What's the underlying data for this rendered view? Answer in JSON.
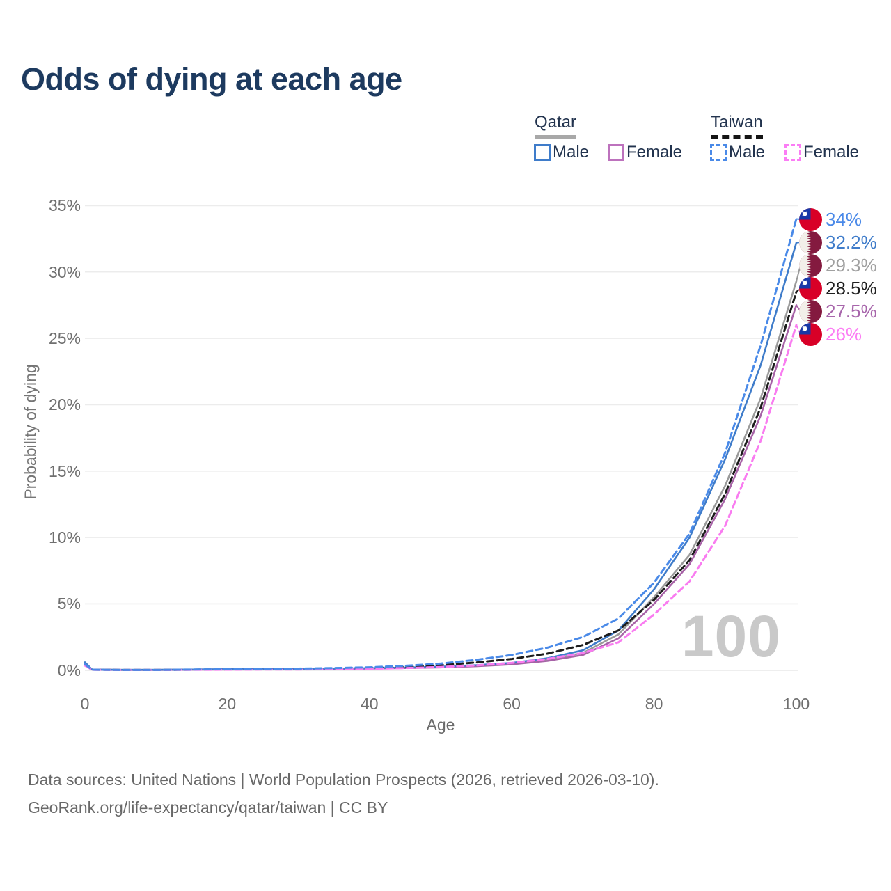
{
  "title": "Odds of dying at each age",
  "legend": {
    "groups": [
      {
        "name": "Qatar",
        "line_style": "solid",
        "underline_color": "#a8a8a8",
        "items": [
          {
            "label": "Male",
            "color": "#3f7cca"
          },
          {
            "label": "Female",
            "color": "#bd72bd"
          }
        ]
      },
      {
        "name": "Taiwan",
        "line_style": "dashed",
        "underline_color": "#141414",
        "items": [
          {
            "label": "Male",
            "color": "#4a8ae8"
          },
          {
            "label": "Female",
            "color": "#fb7df5"
          }
        ]
      }
    ]
  },
  "chart_data": {
    "type": "line",
    "xlabel": "Age",
    "ylabel": "Probability of dying",
    "watermark": "100",
    "xlim": [
      0,
      100
    ],
    "ylim": [
      0,
      35
    ],
    "grid": "horizontal",
    "legend_position": "top-right",
    "x_ticks": [
      {
        "label": "0",
        "value": 0
      },
      {
        "label": "20",
        "value": 20
      },
      {
        "label": "40",
        "value": 40
      },
      {
        "label": "60",
        "value": 60
      },
      {
        "label": "80",
        "value": 80
      },
      {
        "label": "100",
        "value": 100
      }
    ],
    "y_ticks": [
      {
        "label": "0%",
        "value": 0
      },
      {
        "label": "5%",
        "value": 5
      },
      {
        "label": "10%",
        "value": 10
      },
      {
        "label": "15%",
        "value": 15
      },
      {
        "label": "20%",
        "value": 20
      },
      {
        "label": "25%",
        "value": 25
      },
      {
        "label": "30%",
        "value": 30
      },
      {
        "label": "35%",
        "value": 35
      }
    ],
    "x": [
      0,
      1,
      5,
      10,
      15,
      20,
      25,
      30,
      35,
      40,
      45,
      50,
      55,
      60,
      65,
      70,
      75,
      80,
      85,
      90,
      95,
      100
    ],
    "series": [
      {
        "name": "Qatar Total",
        "country": "Qatar",
        "flag": "qatar",
        "dash": "solid",
        "color": "#9a9a9a",
        "end_label": "29.3%",
        "end_label_color": "#a0a0a0",
        "values": [
          0.55,
          0.05,
          0.03,
          0.03,
          0.05,
          0.07,
          0.08,
          0.09,
          0.11,
          0.14,
          0.18,
          0.24,
          0.34,
          0.5,
          0.8,
          1.3,
          2.7,
          5.5,
          8.7,
          13.9,
          20.5,
          29.3
        ]
      },
      {
        "name": "Qatar Female",
        "country": "Qatar",
        "flag": "qatar",
        "dash": "solid",
        "color": "#a763a7",
        "end_label": "27.5%",
        "end_label_color": "#a765ab",
        "values": [
          0.5,
          0.05,
          0.02,
          0.02,
          0.04,
          0.05,
          0.06,
          0.07,
          0.09,
          0.12,
          0.16,
          0.21,
          0.3,
          0.44,
          0.7,
          1.15,
          2.4,
          5.0,
          8.0,
          12.9,
          19.2,
          27.5
        ]
      },
      {
        "name": "Qatar Male",
        "country": "Qatar",
        "flag": "qatar",
        "dash": "solid",
        "color": "#3f7cca",
        "end_label": "32.2%",
        "end_label_color": "#3f7cca",
        "values": [
          0.6,
          0.05,
          0.03,
          0.03,
          0.05,
          0.08,
          0.09,
          0.1,
          0.12,
          0.15,
          0.2,
          0.27,
          0.38,
          0.55,
          0.9,
          1.5,
          3.0,
          6.1,
          10.0,
          15.9,
          23.0,
          32.2
        ]
      },
      {
        "name": "Taiwan Total",
        "country": "Taiwan",
        "flag": "taiwan",
        "dash": "dashed",
        "color": "#1c1c1c",
        "end_label": "28.5%",
        "end_label_color": "#1f1f1f",
        "values": [
          0.4,
          0.04,
          0.02,
          0.02,
          0.04,
          0.06,
          0.08,
          0.09,
          0.12,
          0.17,
          0.25,
          0.38,
          0.58,
          0.85,
          1.25,
          1.9,
          3.0,
          5.3,
          8.3,
          13.3,
          19.8,
          28.5
        ]
      },
      {
        "name": "Taiwan Female",
        "country": "Taiwan",
        "flag": "taiwan",
        "dash": "dashed",
        "color": "#f97cf0",
        "end_label": "26%",
        "end_label_color": "#fc7cf4",
        "values": [
          0.35,
          0.03,
          0.02,
          0.02,
          0.03,
          0.04,
          0.05,
          0.06,
          0.08,
          0.11,
          0.16,
          0.24,
          0.36,
          0.55,
          0.85,
          1.3,
          2.1,
          4.2,
          6.7,
          10.9,
          17.3,
          26.0
        ]
      },
      {
        "name": "Taiwan Male",
        "country": "Taiwan",
        "flag": "taiwan",
        "dash": "dashed",
        "color": "#4a8ae8",
        "end_label": "34%",
        "end_label_color": "#4a89e8",
        "values": [
          0.45,
          0.04,
          0.02,
          0.02,
          0.05,
          0.08,
          0.1,
          0.12,
          0.16,
          0.22,
          0.33,
          0.5,
          0.78,
          1.15,
          1.7,
          2.5,
          3.9,
          6.6,
          10.3,
          16.4,
          24.5,
          34.0
        ]
      }
    ]
  },
  "flag_colors": {
    "taiwan_red": "#d80027",
    "taiwan_blue": "#1838a8",
    "qatar_maroon": "#841a3f",
    "flag_white": "#f2efe9"
  },
  "footer": {
    "line1": "Data sources: United Nations | World Population Prospects (2026, retrieved 2026-03-10).",
    "line2": "GeoRank.org/life-expectancy/qatar/taiwan | CC BY"
  }
}
